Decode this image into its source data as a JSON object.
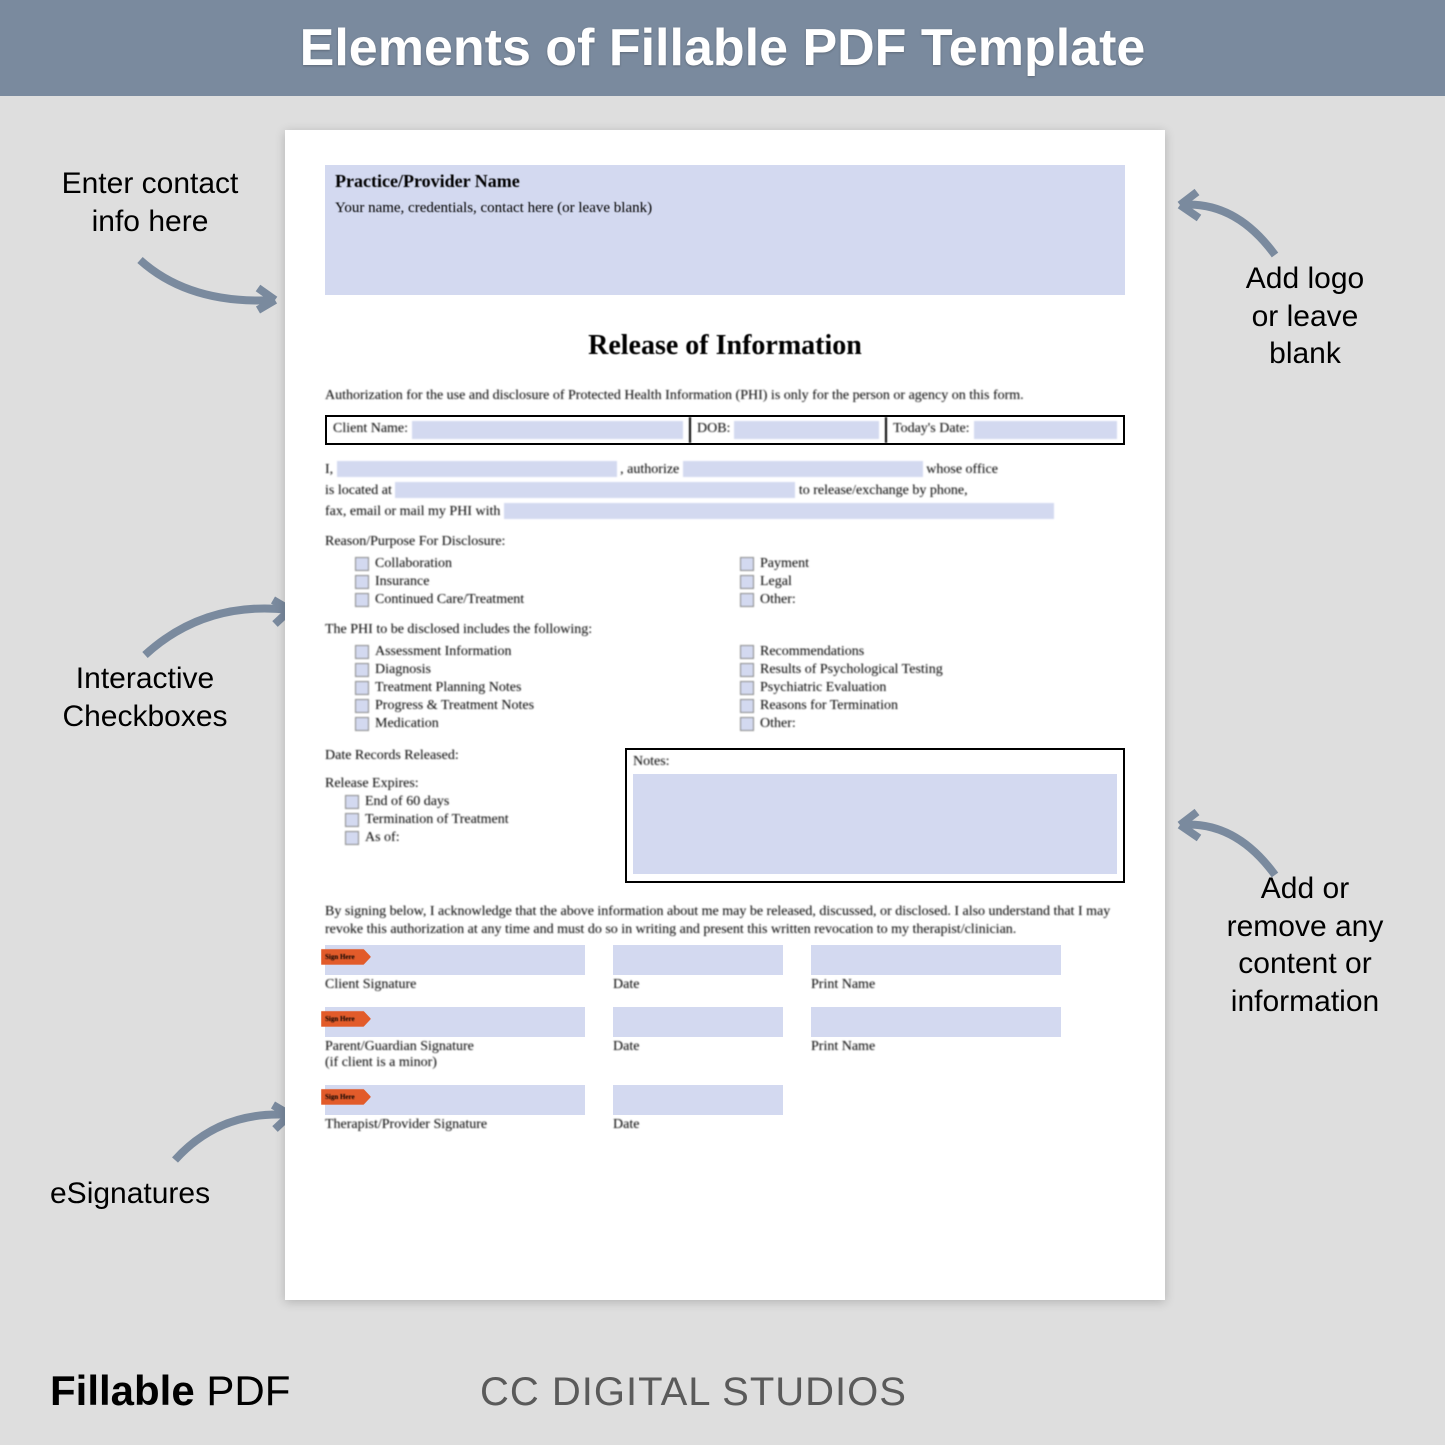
{
  "header": {
    "title": "Elements of Fillable PDF Template"
  },
  "callouts": {
    "contact": "Enter contact\ninfo here",
    "logo": "Add logo\nor leave\nblank",
    "checkboxes": "Interactive\nCheckboxes",
    "content": "Add or\nremove any\ncontent or\ninformation",
    "esig": "eSignatures"
  },
  "footer": {
    "bold": "Fillable",
    "rest": " PDF",
    "brand": "CC DIGITAL STUDIOS"
  },
  "doc": {
    "contactTitle": "Practice/Provider Name",
    "contactSub": "Your name, credentials, contact here (or leave blank)",
    "title": "Release of Information",
    "intro": "Authorization for the use and disclosure of Protected Health Information (PHI) is only for the person or agency on this form.",
    "cells": {
      "client": "Client Name:",
      "dob": "DOB:",
      "date": "Today's Date:"
    },
    "auth": {
      "p1a": "I,",
      "p1b": ", authorize",
      "p1c": "whose office",
      "p2a": "is located at",
      "p2b": "to release/exchange by phone,",
      "p3a": "fax, email or mail my PHI with"
    },
    "reasonLabel": "Reason/Purpose For Disclosure:",
    "reasons1": [
      "Collaboration",
      "Insurance",
      "Continued Care/Treatment"
    ],
    "reasons2": [
      "Payment",
      "Legal",
      "Other:"
    ],
    "phiLabel": "The PHI to be disclosed includes the following:",
    "phi1": [
      "Assessment Information",
      "Diagnosis",
      "Treatment Planning Notes",
      "Progress & Treatment Notes",
      "Medication"
    ],
    "phi2": [
      "Recommendations",
      "Results of Psychological Testing",
      "Psychiatric Evaluation",
      "Reasons for Termination",
      "Other:"
    ],
    "recordsLabel": "Date Records Released:",
    "expiresLabel": "Release Expires:",
    "expires": [
      "End of 60 days",
      "Termination of Treatment",
      "As of:"
    ],
    "notesLabel": "Notes:",
    "disclaimer": "By signing below, I acknowledge that the above information about me may be released, discussed, or disclosed. I also understand that I may revoke this authorization at any time and must do so in writing and present this written revocation to my therapist/clinician.",
    "sig": {
      "tag": "Sign Here",
      "r1": [
        "Client Signature",
        "Date",
        "Print Name"
      ],
      "r2": [
        "Parent/Guardian Signature\n(if client is a minor)",
        "Date",
        "Print Name"
      ],
      "r3": [
        "Therapist/Provider Signature",
        "Date"
      ]
    }
  },
  "colors": {
    "headerBg": "#7a8a9e",
    "pageBg": "#dedede",
    "fillable": "#d3d9f0",
    "signTag": "#e25b2a",
    "arrow": "#7a8a9e"
  }
}
